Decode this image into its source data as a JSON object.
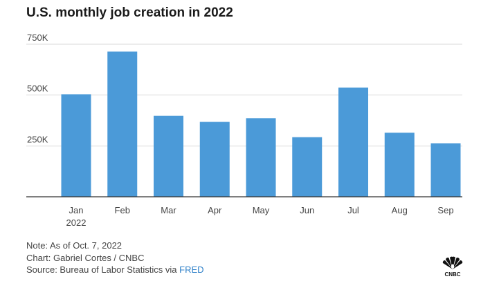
{
  "chart_data": {
    "type": "bar",
    "title": "U.S. monthly job creation in 2022",
    "categories": [
      "Jan",
      "Feb",
      "Mar",
      "Apr",
      "May",
      "Jun",
      "Jul",
      "Aug",
      "Sep"
    ],
    "category_sublabels": [
      "2022",
      "",
      "",
      "",
      "",
      "",
      "",
      "",
      ""
    ],
    "values": [
      504000,
      714000,
      398000,
      368000,
      386000,
      293000,
      537000,
      315000,
      263000
    ],
    "ylim": [
      0,
      750000
    ],
    "yticks": [
      {
        "value": 250000,
        "label": "250K"
      },
      {
        "value": 500000,
        "label": "500K"
      },
      {
        "value": 750000,
        "label": "750K"
      }
    ],
    "xlabel": "",
    "ylabel": "",
    "grid": true,
    "bar_color": "#4b9ad8",
    "grid_color": "#d9d9d9",
    "axis_color": "#333333"
  },
  "notes": {
    "note": "Note: As of Oct. 7, 2022",
    "credit": "Chart: Gabriel Cortes / CNBC",
    "source_prefix": "Source: Bureau of Labor Statistics via ",
    "source_link": "FRED",
    "link_color": "#2f80c9"
  },
  "logo": {
    "icon": "nbc-peacock-icon",
    "text": "CNBC"
  }
}
